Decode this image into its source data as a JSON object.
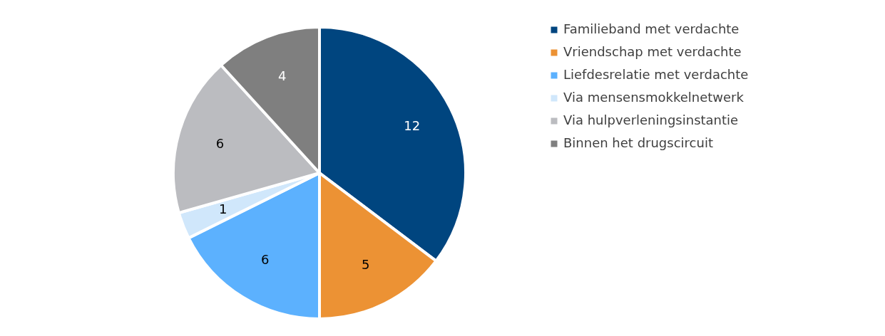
{
  "chart_data": {
    "type": "pie",
    "categories": [
      "Familieband met verdachte",
      "Vriendschap met verdachte",
      "Liefdesrelatie met verdachte",
      "Via mensensmokkelnetwerk",
      "Via hulpverleningsinstantie",
      "Binnen het drugscircuit"
    ],
    "values": [
      12,
      5,
      6,
      1,
      6,
      4
    ],
    "colors": [
      "#00457f",
      "#ec9234",
      "#5cb1fe",
      "#d0e7fb",
      "#bbbcc0",
      "#7f7f7f"
    ],
    "data_labels": true,
    "legend": "right"
  }
}
